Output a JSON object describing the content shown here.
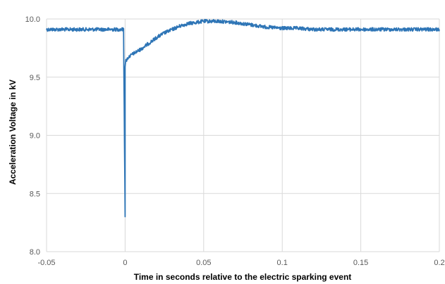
{
  "chart_data": {
    "type": "line",
    "title": "",
    "xlabel": "Time in seconds relative to the electric sparking event",
    "ylabel": "Acceleration Voltage in kV",
    "xlim": [
      -0.05,
      0.2
    ],
    "ylim": [
      8.0,
      10.0
    ],
    "x_ticks": [
      "-0.05",
      "0",
      "0.05",
      "0.1",
      "0.15",
      "0.2"
    ],
    "y_ticks": [
      "8.0",
      "8.5",
      "9.0",
      "9.5",
      "10.0"
    ],
    "grid": true,
    "legend": "none",
    "line_color": "#2E75B6",
    "series": [
      {
        "x": [
          -0.05,
          -0.04,
          -0.03,
          -0.02,
          -0.01,
          -0.001,
          0.0,
          0.0,
          0.0005,
          0.002,
          0.005,
          0.01,
          0.015,
          0.02,
          0.025,
          0.03,
          0.035,
          0.04,
          0.045,
          0.05,
          0.06,
          0.07,
          0.08,
          0.09,
          0.1,
          0.11,
          0.12,
          0.13,
          0.15,
          0.17,
          0.2
        ],
        "y": [
          9.91,
          9.91,
          9.91,
          9.91,
          9.91,
          9.91,
          8.3,
          9.6,
          9.64,
          9.67,
          9.7,
          9.74,
          9.79,
          9.84,
          9.88,
          9.91,
          9.94,
          9.96,
          9.97,
          9.98,
          9.98,
          9.97,
          9.95,
          9.93,
          9.92,
          9.92,
          9.91,
          9.91,
          9.91,
          9.91,
          9.91
        ]
      }
    ]
  }
}
